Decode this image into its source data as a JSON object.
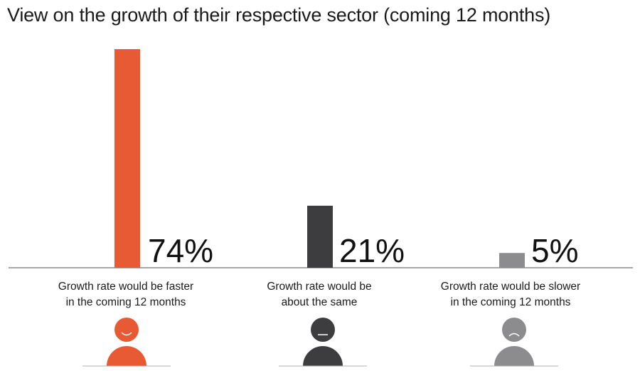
{
  "chart_data": {
    "type": "bar",
    "title": "View on the growth of their respective sector (coming 12 months)",
    "categories": [
      [
        "Growth rate would be faster",
        "in the coming 12 months"
      ],
      [
        "Growth rate would be",
        "about the same"
      ],
      [
        "Growth rate would be slower",
        "in the coming 12 months"
      ]
    ],
    "values": [
      74,
      21,
      5
    ],
    "value_labels": [
      "74%",
      "21%",
      "5%"
    ],
    "unit": "%",
    "ylim": [
      0,
      74
    ],
    "colors": [
      "#e85a33",
      "#3d3d3f",
      "#8c8c8e"
    ],
    "icons": [
      "happy-face-icon",
      "neutral-face-icon",
      "sad-face-icon"
    ],
    "xlabel": "",
    "ylabel": "",
    "grid": false,
    "legend": "none"
  }
}
